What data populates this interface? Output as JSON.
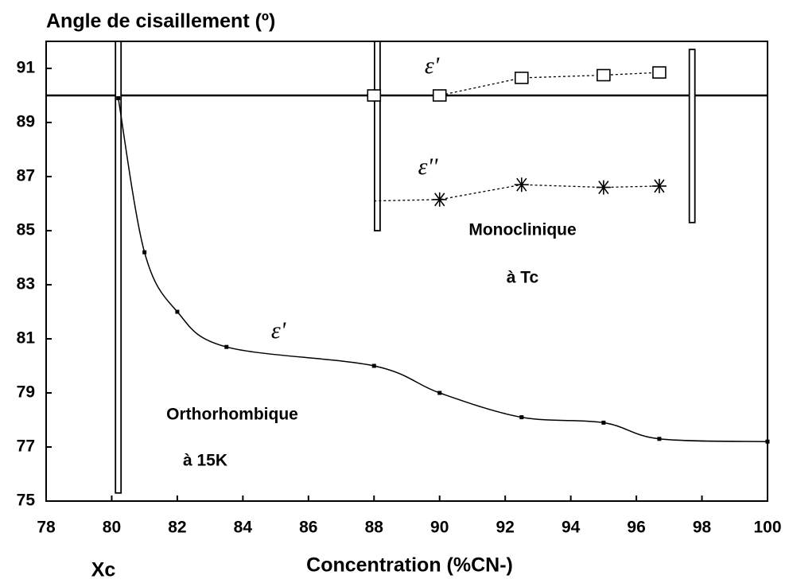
{
  "chart_data": {
    "type": "line",
    "title": "Angle de cisaillement (º)",
    "x_label": "Concentration (%CN-)",
    "annotations": [
      "Xc",
      "ε'",
      "ε''",
      "Monoclinique",
      "à Tc",
      "ε'",
      "Orthorhombique",
      "à 15K"
    ],
    "xlim": [
      78,
      100
    ],
    "xticks": [
      78,
      80,
      82,
      84,
      86,
      88,
      90,
      92,
      94,
      96,
      98,
      100
    ],
    "ylim": [
      75,
      92
    ],
    "yticks": [
      75,
      77,
      79,
      81,
      83,
      85,
      87,
      89,
      91
    ],
    "hline": 90,
    "vlines": [
      {
        "x": 80.2,
        "y": [
          75.3,
          92
        ]
      },
      {
        "x": 88.1,
        "y": [
          85,
          92
        ]
      },
      {
        "x": 97.7,
        "y": [
          85.3,
          91.7
        ]
      }
    ],
    "series": [
      {
        "name": "ε' orthorhombique",
        "color": "#000",
        "marker": "dot",
        "smooth": true,
        "x": [
          80.2,
          81,
          82,
          83.5,
          88,
          90,
          92.5,
          95,
          96.7,
          100
        ],
        "values": [
          89.9,
          84.2,
          82,
          80.7,
          80,
          79,
          78.1,
          77.9,
          77.3,
          77.2
        ]
      },
      {
        "name": "ε' monoclinique",
        "color": "#000",
        "marker": "square",
        "smooth": false,
        "x": [
          88,
          90,
          92.5,
          95,
          96.7
        ],
        "values": [
          90,
          90,
          90.65,
          90.75,
          90.85
        ]
      },
      {
        "name": "ε'' monoclinique",
        "color": "#000",
        "marker": "star",
        "smooth": false,
        "x": [
          88,
          90,
          92.5,
          95,
          96.7
        ],
        "values": [
          86.1,
          86.15,
          86.7,
          86.6,
          86.65
        ]
      }
    ]
  }
}
